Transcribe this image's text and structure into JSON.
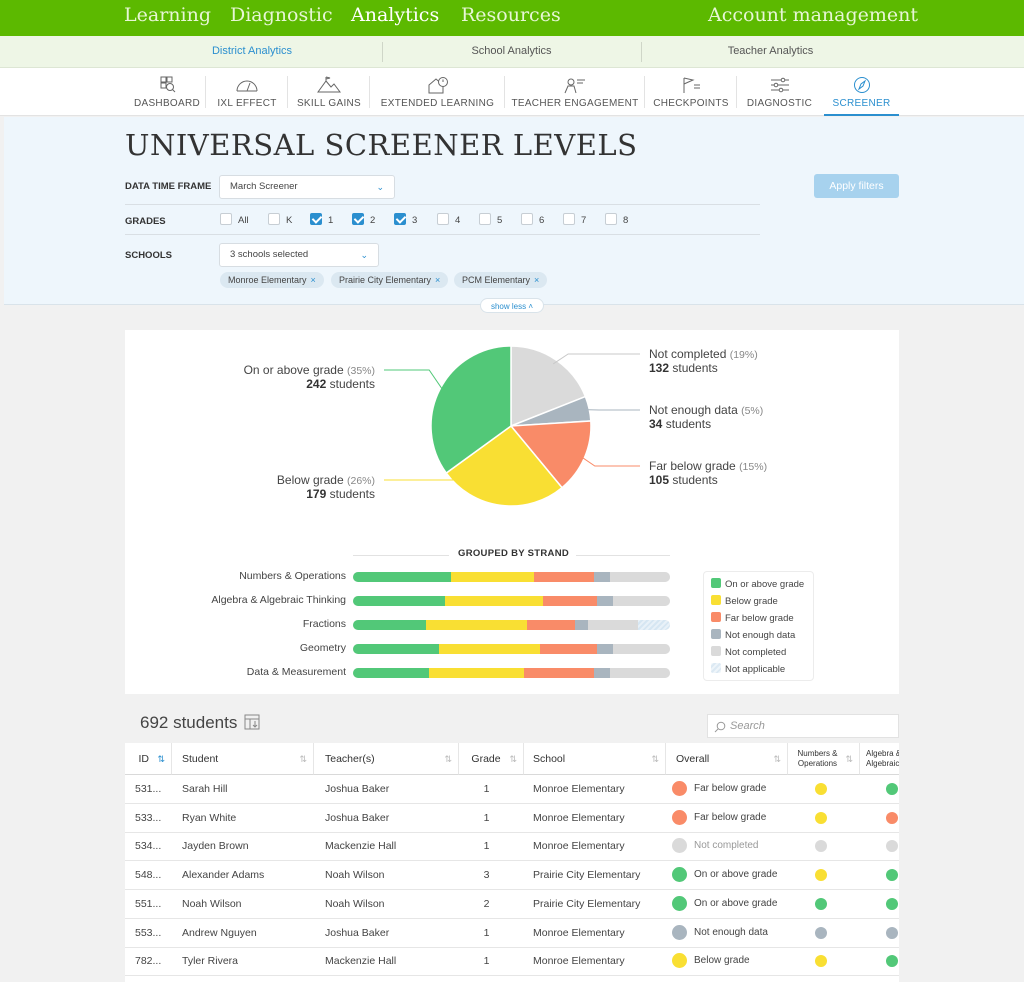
{
  "topnav": {
    "items": [
      {
        "label": "Learning",
        "active": false
      },
      {
        "label": "Diagnostic",
        "active": false
      },
      {
        "label": "Analytics",
        "active": true
      },
      {
        "label": "Resources",
        "active": false
      }
    ],
    "account": "Account management"
  },
  "subnav": {
    "tabs": [
      {
        "label": "District Analytics",
        "active": true
      },
      {
        "label": "School Analytics",
        "active": false
      },
      {
        "label": "Teacher Analytics",
        "active": false
      }
    ]
  },
  "toolnav": {
    "items": [
      {
        "label": "DASHBOARD",
        "icon": "dashboard-icon"
      },
      {
        "label": "IXL EFFECT",
        "icon": "gauge-icon"
      },
      {
        "label": "SKILL GAINS",
        "icon": "mountain-icon"
      },
      {
        "label": "EXTENDED LEARNING",
        "icon": "house-clock-icon"
      },
      {
        "label": "TEACHER ENGAGEMENT",
        "icon": "teacher-icon"
      },
      {
        "label": "CHECKPOINTS",
        "icon": "flag-icon"
      },
      {
        "label": "DIAGNOSTIC",
        "icon": "sliders-icon"
      },
      {
        "label": "SCREENER",
        "icon": "compass-icon",
        "active": true
      }
    ]
  },
  "page": {
    "title": "UNIVERSAL SCREENER LEVELS"
  },
  "filters": {
    "timeframe_label": "DATA TIME FRAME",
    "timeframe_value": "March Screener",
    "grades_label": "GRADES",
    "grades": [
      {
        "label": "All",
        "checked": false
      },
      {
        "label": "K",
        "checked": false
      },
      {
        "label": "1",
        "checked": true
      },
      {
        "label": "2",
        "checked": true
      },
      {
        "label": "3",
        "checked": true
      },
      {
        "label": "4",
        "checked": false
      },
      {
        "label": "5",
        "checked": false
      },
      {
        "label": "6",
        "checked": false
      },
      {
        "label": "7",
        "checked": false
      },
      {
        "label": "8",
        "checked": false
      }
    ],
    "schools_label": "SCHOOLS",
    "schools_value": "3 schools selected",
    "chips": [
      "Monroe Elementary",
      "Prairie City Elementary",
      "PCM Elementary"
    ],
    "chip_remove": "×",
    "apply_label": "Apply filters",
    "show_less": "show less"
  },
  "colors": {
    "on": "#52c878",
    "below": "#f9df33",
    "far": "#f98b68",
    "notenough": "#a9b5bf",
    "notcompleted": "#dadada",
    "na": "#e3eef7"
  },
  "pie": {
    "segments": [
      {
        "key": "notcompleted",
        "label": "Not completed",
        "pct": "(19%)",
        "value": 19,
        "count": "132",
        "unit": "students"
      },
      {
        "key": "notenough",
        "label": "Not enough data",
        "pct": "(5%)",
        "value": 5,
        "count": "34",
        "unit": "students"
      },
      {
        "key": "far",
        "label": "Far below grade",
        "pct": "(15%)",
        "value": 15,
        "count": "105",
        "unit": "students"
      },
      {
        "key": "below",
        "label": "Below grade",
        "pct": "(26%)",
        "value": 26,
        "count": "179",
        "unit": "students"
      },
      {
        "key": "on",
        "label": "On or above grade",
        "pct": "(35%)",
        "value": 35,
        "count": "242",
        "unit": "students"
      }
    ]
  },
  "strand": {
    "title": "GROUPED BY STRAND",
    "rows": [
      {
        "name": "Numbers & Operations",
        "on": 31,
        "below": 26,
        "far": 19,
        "notenough": 5,
        "notcompleted": 19,
        "na": 0
      },
      {
        "name": "Algebra & Algebraic Thinking",
        "on": 29,
        "below": 31,
        "far": 17,
        "notenough": 5,
        "notcompleted": 18,
        "na": 0
      },
      {
        "name": "Fractions",
        "on": 23,
        "below": 32,
        "far": 15,
        "notenough": 4,
        "notcompleted": 16,
        "na": 10
      },
      {
        "name": "Geometry",
        "on": 27,
        "below": 32,
        "far": 18,
        "notenough": 5,
        "notcompleted": 18,
        "na": 0
      },
      {
        "name": "Data & Measurement",
        "on": 24,
        "below": 30,
        "far": 22,
        "notenough": 5,
        "notcompleted": 19,
        "na": 0
      }
    ],
    "legend": [
      {
        "key": "on",
        "label": "On or above grade"
      },
      {
        "key": "below",
        "label": "Below grade"
      },
      {
        "key": "far",
        "label": "Far below grade"
      },
      {
        "key": "notenough",
        "label": "Not enough data"
      },
      {
        "key": "notcompleted",
        "label": "Not completed"
      },
      {
        "key": "na",
        "label": "Not applicable"
      }
    ]
  },
  "table_section": {
    "count": "692 students",
    "search_placeholder": "Search",
    "columns": [
      "ID",
      "Student",
      "Teacher(s)",
      "Grade",
      "School",
      "Overall",
      "Numbers & Operations",
      "Algebra & Algebraic"
    ],
    "rows": [
      {
        "id": "531...",
        "student": "Sarah Hill",
        "teacher": "Joshua Baker",
        "grade": "1",
        "school": "Monroe Elementary",
        "overall": "Far below grade",
        "overall_key": "far",
        "numops": "below",
        "alg": "on"
      },
      {
        "id": "533...",
        "student": "Ryan White",
        "teacher": "Joshua Baker",
        "grade": "1",
        "school": "Monroe Elementary",
        "overall": "Far below grade",
        "overall_key": "far",
        "numops": "below",
        "alg": "far"
      },
      {
        "id": "534...",
        "student": "Jayden Brown",
        "teacher": "Mackenzie Hall",
        "grade": "1",
        "school": "Monroe Elementary",
        "overall": "Not completed",
        "overall_key": "notcompleted",
        "numops": "notcompleted",
        "alg": "notcompleted"
      },
      {
        "id": "548...",
        "student": "Alexander Adams",
        "teacher": "Noah Wilson",
        "grade": "3",
        "school": "Prairie City Elementary",
        "overall": "On or above grade",
        "overall_key": "on",
        "numops": "below",
        "alg": "on"
      },
      {
        "id": "551...",
        "student": "Noah Wilson",
        "teacher": "Noah Wilson",
        "grade": "2",
        "school": "Prairie City Elementary",
        "overall": "On or above grade",
        "overall_key": "on",
        "numops": "on",
        "alg": "on"
      },
      {
        "id": "553...",
        "student": "Andrew Nguyen",
        "teacher": "Joshua Baker",
        "grade": "1",
        "school": "Monroe Elementary",
        "overall": "Not enough data",
        "overall_key": "notenough",
        "numops": "notenough",
        "alg": "notenough"
      },
      {
        "id": "782...",
        "student": "Tyler Rivera",
        "teacher": "Mackenzie Hall",
        "grade": "1",
        "school": "Monroe Elementary",
        "overall": "Below grade",
        "overall_key": "below",
        "numops": "below",
        "alg": "on"
      }
    ]
  }
}
